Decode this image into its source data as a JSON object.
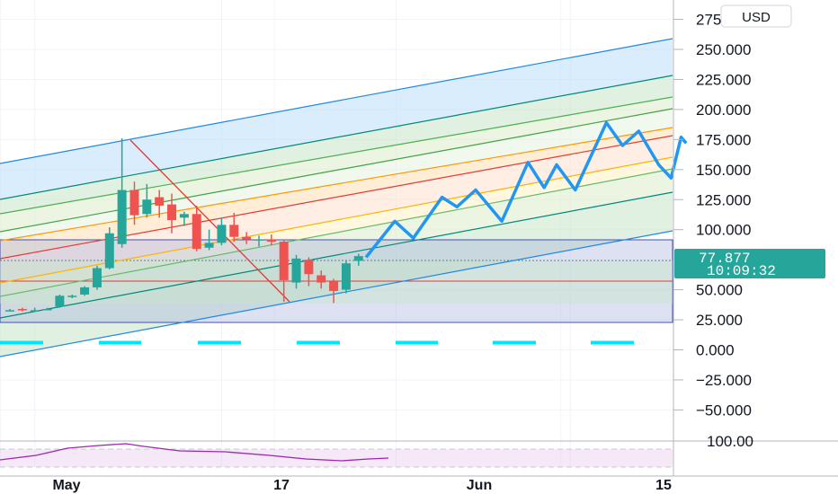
{
  "currency_button": "USD",
  "last_price": {
    "value": "77.877",
    "countdown": "10:09:32",
    "color": "#26a69a"
  },
  "colors": {
    "up": "#26a69a",
    "down": "#ef5350",
    "projection": "#2196f3",
    "cyan": "#00e5ff",
    "rsi": "#9c27b0"
  },
  "chart_data": {
    "type": "candlestick",
    "price_axis": {
      "ticks": [
        275,
        250,
        225,
        200,
        175,
        150,
        125,
        100,
        50,
        25,
        0,
        -25,
        -50
      ],
      "tick_labels": [
        "275.000",
        "250.000",
        "225.000",
        "200.000",
        "175.000",
        "150.000",
        "125.000",
        "100.000",
        "50.000",
        "25.000",
        "0.000",
        "−25.000",
        "−50.000"
      ],
      "ylim": [
        -65,
        290
      ]
    },
    "rsi_axis": {
      "tick": 100,
      "tick_label": "100.00"
    },
    "date_axis": {
      "labels": [
        "May",
        "17",
        "Jun",
        "15"
      ],
      "label_index": [
        2,
        17,
        31,
        45
      ]
    },
    "candles": [
      {
        "o": 33,
        "h": 34,
        "l": 32,
        "c": 33
      },
      {
        "o": 34,
        "h": 35,
        "l": 32,
        "c": 33
      },
      {
        "o": 33,
        "h": 35,
        "l": 32,
        "c": 33
      },
      {
        "o": 34,
        "h": 35,
        "l": 33,
        "c": 34
      },
      {
        "o": 36,
        "h": 46,
        "l": 35,
        "c": 45
      },
      {
        "o": 44,
        "h": 46,
        "l": 43,
        "c": 45
      },
      {
        "o": 46,
        "h": 53,
        "l": 45,
        "c": 52
      },
      {
        "o": 52,
        "h": 70,
        "l": 50,
        "c": 68
      },
      {
        "o": 68,
        "h": 102,
        "l": 67,
        "c": 97
      },
      {
        "o": 88,
        "h": 176,
        "l": 85,
        "c": 133
      },
      {
        "o": 133,
        "h": 140,
        "l": 104,
        "c": 112
      },
      {
        "o": 113,
        "h": 138,
        "l": 110,
        "c": 125
      },
      {
        "o": 127,
        "h": 133,
        "l": 110,
        "c": 120
      },
      {
        "o": 121,
        "h": 130,
        "l": 97,
        "c": 108
      },
      {
        "o": 110,
        "h": 115,
        "l": 103,
        "c": 113
      },
      {
        "o": 113,
        "h": 120,
        "l": 82,
        "c": 84
      },
      {
        "o": 85,
        "h": 100,
        "l": 83,
        "c": 89
      },
      {
        "o": 89,
        "h": 110,
        "l": 87,
        "c": 104
      },
      {
        "o": 104,
        "h": 114,
        "l": 90,
        "c": 94
      },
      {
        "o": 94,
        "h": 98,
        "l": 88,
        "c": 92
      },
      {
        "o": 92,
        "h": 95,
        "l": 86,
        "c": 92
      },
      {
        "o": 92,
        "h": 96,
        "l": 87,
        "c": 90
      },
      {
        "o": 90,
        "h": 92,
        "l": 40,
        "c": 58
      },
      {
        "o": 56,
        "h": 79,
        "l": 51,
        "c": 76
      },
      {
        "o": 75,
        "h": 77,
        "l": 53,
        "c": 63
      },
      {
        "o": 62,
        "h": 66,
        "l": 51,
        "c": 56
      },
      {
        "o": 57,
        "h": 59,
        "l": 39,
        "c": 49
      },
      {
        "o": 50,
        "h": 74,
        "l": 47,
        "c": 72
      },
      {
        "o": 74,
        "h": 80,
        "l": 70,
        "c": 78
      }
    ],
    "projection": [
      [
        28.6,
        77
      ],
      [
        30.9,
        107
      ],
      [
        32.4,
        93
      ],
      [
        34.7,
        127
      ],
      [
        35.9,
        119
      ],
      [
        37.4,
        133
      ],
      [
        39.5,
        107
      ],
      [
        41.6,
        156
      ],
      [
        42.9,
        135
      ],
      [
        43.9,
        154
      ],
      [
        45.4,
        133
      ],
      [
        47.9,
        189
      ],
      [
        49.2,
        170
      ],
      [
        50.5,
        182
      ],
      [
        52.1,
        154
      ],
      [
        53.1,
        143
      ],
      [
        53.9,
        177
      ],
      [
        54.3,
        172
      ]
    ],
    "channel_level": [
      44,
      23
    ]
  }
}
